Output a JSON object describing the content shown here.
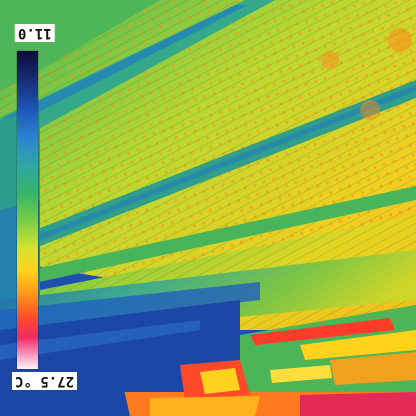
{
  "thermal_image": {
    "scale": {
      "max_label": "11.0",
      "min_label": "27.5 °C"
    },
    "palette": {
      "background": "#1a3fa0",
      "yellow": "#e8d21e",
      "green": "#41b45a",
      "teal": "#2f9f8c",
      "blue": "#1d55b5",
      "orange": "#ff9a1a",
      "red": "#ff3c2a"
    }
  }
}
